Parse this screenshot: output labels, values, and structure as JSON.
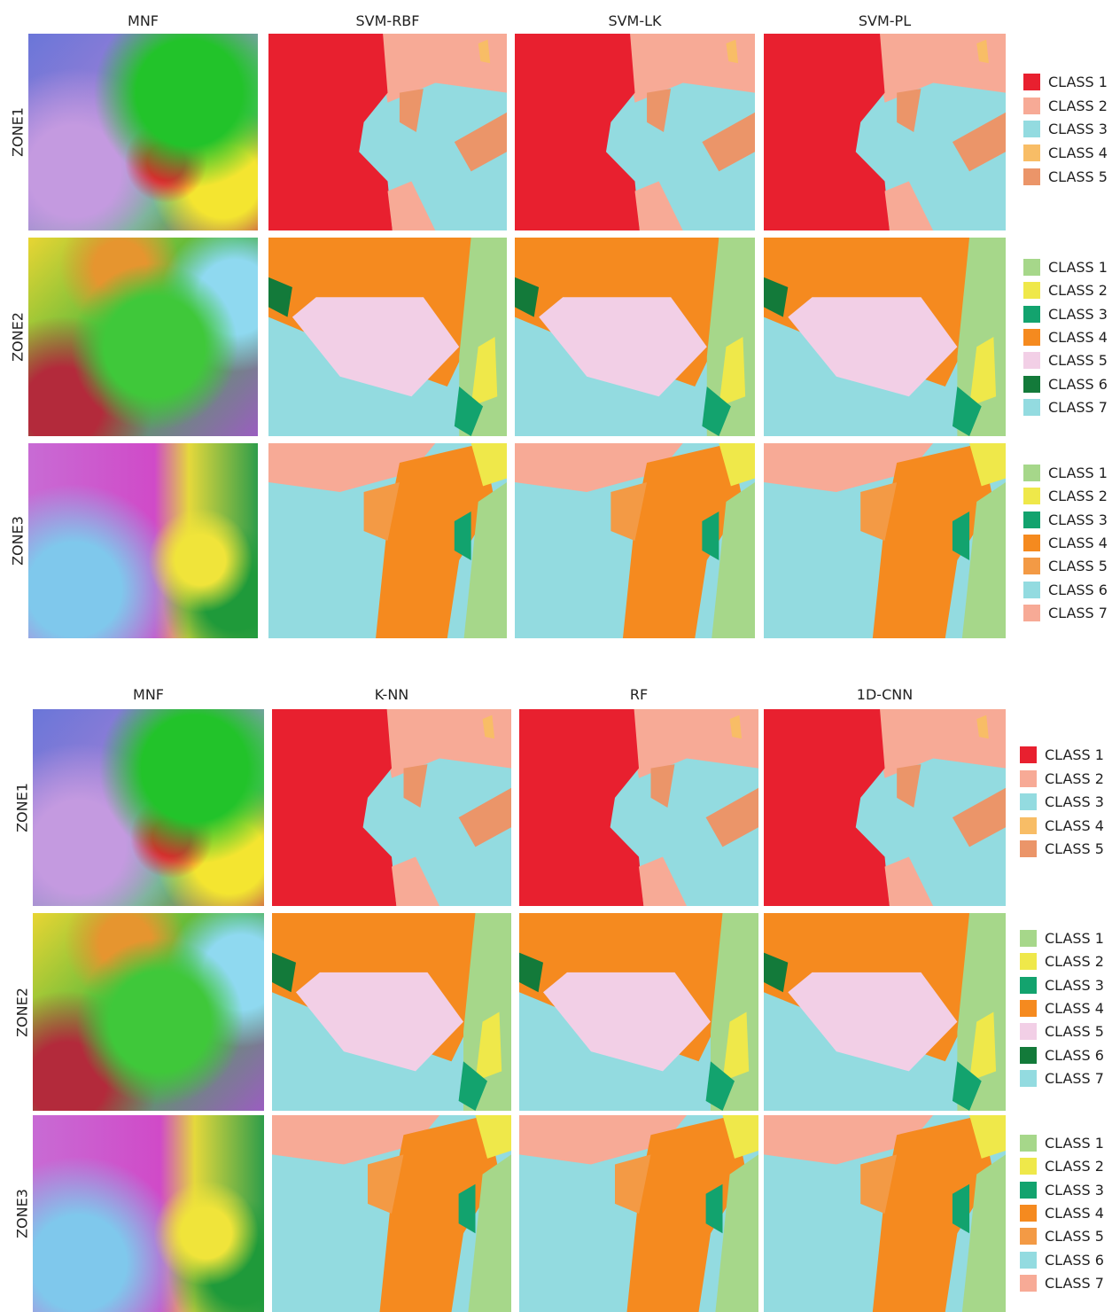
{
  "blocks": [
    {
      "columns": [
        "MNF",
        "SVM-RBF",
        "SVM-LK",
        "SVM-PL"
      ],
      "rows": [
        {
          "label": "ZONE1",
          "legend": [
            {
              "label": "CLASS 1",
              "color": "#e8202f"
            },
            {
              "label": "CLASS 2",
              "color": "#f7aa96"
            },
            {
              "label": "CLASS 3",
              "color": "#93dbe0"
            },
            {
              "label": "CLASS 4",
              "color": "#f8bd66"
            },
            {
              "label": "CLASS 5",
              "color": "#eb9569"
            }
          ]
        },
        {
          "label": "ZONE2",
          "legend": [
            {
              "label": "CLASS 1",
              "color": "#a6d78a"
            },
            {
              "label": "CLASS 2",
              "color": "#efe84a"
            },
            {
              "label": "CLASS 3",
              "color": "#13a36e"
            },
            {
              "label": "CLASS 4",
              "color": "#f58a1f"
            },
            {
              "label": "CLASS 5",
              "color": "#f2cfe6"
            },
            {
              "label": "CLASS 6",
              "color": "#137a3a"
            },
            {
              "label": "CLASS 7",
              "color": "#93dbe0"
            }
          ]
        },
        {
          "label": "ZONE3",
          "legend": [
            {
              "label": "CLASS 1",
              "color": "#a6d78a"
            },
            {
              "label": "CLASS 2",
              "color": "#efe84a"
            },
            {
              "label": "CLASS 3",
              "color": "#12a36e"
            },
            {
              "label": "CLASS 4",
              "color": "#f58a1f"
            },
            {
              "label": "CLASS 5",
              "color": "#f39a45"
            },
            {
              "label": "CLASS 6",
              "color": "#93dbe0"
            },
            {
              "label": "CLASS 7",
              "color": "#f7aa96"
            }
          ]
        }
      ]
    },
    {
      "columns": [
        "MNF",
        "K-NN",
        "RF",
        "1D-CNN"
      ],
      "rows": [
        {
          "label": "ZONE1",
          "legend": [
            {
              "label": "CLASS 1",
              "color": "#e8202f"
            },
            {
              "label": "CLASS 2",
              "color": "#f7aa96"
            },
            {
              "label": "CLASS 3",
              "color": "#93dbe0"
            },
            {
              "label": "CLASS 4",
              "color": "#f8bd66"
            },
            {
              "label": "CLASS 5",
              "color": "#eb9569"
            }
          ]
        },
        {
          "label": "ZONE2",
          "legend": [
            {
              "label": "CLASS 1",
              "color": "#a6d78a"
            },
            {
              "label": "CLASS 2",
              "color": "#efe84a"
            },
            {
              "label": "CLASS 3",
              "color": "#13a36e"
            },
            {
              "label": "CLASS 4",
              "color": "#f58a1f"
            },
            {
              "label": "CLASS 5",
              "color": "#f2cfe6"
            },
            {
              "label": "CLASS 6",
              "color": "#137a3a"
            },
            {
              "label": "CLASS 7",
              "color": "#93dbe0"
            }
          ]
        },
        {
          "label": "ZONE3",
          "legend": [
            {
              "label": "CLASS 1",
              "color": "#a6d78a"
            },
            {
              "label": "CLASS 2",
              "color": "#efe84a"
            },
            {
              "label": "CLASS 3",
              "color": "#12a36e"
            },
            {
              "label": "CLASS 4",
              "color": "#f58a1f"
            },
            {
              "label": "CLASS 5",
              "color": "#f39a45"
            },
            {
              "label": "CLASS 6",
              "color": "#93dbe0"
            },
            {
              "label": "CLASS 7",
              "color": "#f7aa96"
            }
          ]
        }
      ]
    }
  ]
}
